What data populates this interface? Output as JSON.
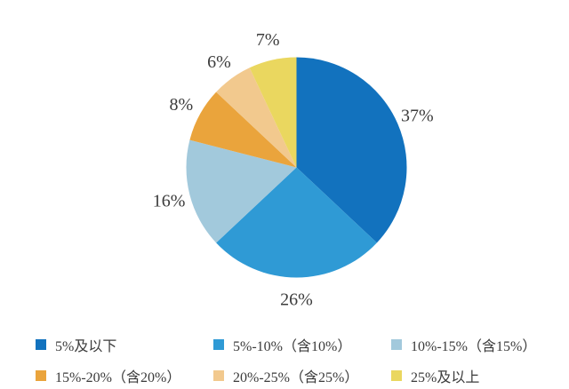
{
  "chart_data": {
    "type": "pie",
    "labels": [
      "5%及以下",
      "5%-10%（含10%）",
      "10%-15%（含15%）",
      "15%-20%（含20%）",
      "20%-25%（含25%）",
      "25%及以上"
    ],
    "values": [
      37,
      26,
      16,
      8,
      6,
      7
    ],
    "value_labels": [
      "37%",
      "26%",
      "16%",
      "8%",
      "6%",
      "7%"
    ],
    "colors": [
      "#1272BE",
      "#2F9AD5",
      "#A2C9DC",
      "#EAA43C",
      "#F2C98E",
      "#EAD75F"
    ],
    "unit": "%",
    "start_angle": "12-oclock",
    "direction": "clockwise",
    "legend_position": "bottom",
    "legend_rows": 2,
    "legend_columns": 3,
    "label_color": "#3B3B3B",
    "background": "#FFFFFF",
    "title": ""
  }
}
